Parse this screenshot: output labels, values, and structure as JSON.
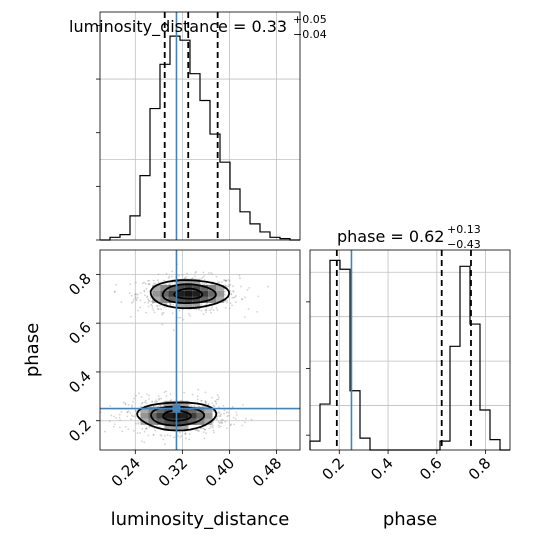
{
  "chart_data": [
    {
      "type": "histogram",
      "panel": "luminosity_distance-marginal",
      "title": {
        "base": "luminosity_distance = 0.33",
        "upper": "+0.05",
        "lower": "−0.04"
      },
      "xlim": [
        0.18,
        0.52
      ],
      "bin_edges": [
        0.18,
        0.197,
        0.214,
        0.231,
        0.248,
        0.265,
        0.282,
        0.299,
        0.316,
        0.333,
        0.35,
        0.367,
        0.384,
        0.401,
        0.418,
        0.435,
        0.452,
        0.469,
        0.486,
        0.503,
        0.52
      ],
      "counts": [
        0,
        2,
        4,
        18,
        48,
        98,
        131,
        152,
        149,
        124,
        104,
        79,
        58,
        38,
        21,
        12,
        6,
        2,
        1,
        0
      ],
      "ylim": [
        0,
        170
      ],
      "quantiles": [
        0.29,
        0.33,
        0.38
      ],
      "truth": 0.31
    },
    {
      "type": "histogram",
      "panel": "phase-marginal",
      "title": {
        "base": "phase = 0.62",
        "upper": "+0.13",
        "lower": "−0.43"
      },
      "xlim": [
        0.08,
        0.9
      ],
      "bin_edges": [
        0.08,
        0.121,
        0.162,
        0.203,
        0.244,
        0.285,
        0.326,
        0.367,
        0.408,
        0.449,
        0.49,
        0.531,
        0.572,
        0.613,
        0.654,
        0.695,
        0.736,
        0.777,
        0.818,
        0.859,
        0.9
      ],
      "counts": [
        6,
        31,
        128,
        122,
        40,
        8,
        0,
        0,
        0,
        0,
        0,
        0,
        0,
        6,
        70,
        124,
        85,
        27,
        7,
        0
      ],
      "ylim": [
        0,
        135
      ],
      "quantiles": [
        0.19,
        0.62,
        0.74
      ],
      "truth": 0.25
    },
    {
      "type": "scatter",
      "panel": "phase-vs-luminosity_distance",
      "xlim": [
        0.18,
        0.52
      ],
      "ylim": [
        0.08,
        0.9
      ],
      "x_ticks": [
        0.24,
        0.32,
        0.4,
        0.48
      ],
      "y_ticks": [
        0.2,
        0.4,
        0.6,
        0.8
      ],
      "x_tick_labels": [
        "0.24",
        "0.32",
        "0.40",
        "0.48"
      ],
      "y_tick_labels": [
        "0.2",
        "0.4",
        "0.6",
        "0.8"
      ],
      "xlabel": "luminosity_distance",
      "ylabel": "phase",
      "modes": [
        {
          "center": [
            0.33,
            0.72
          ],
          "sd": [
            0.043,
            0.037
          ]
        },
        {
          "center": [
            0.31,
            0.22
          ],
          "sd": [
            0.043,
            0.037
          ]
        }
      ],
      "truth": [
        0.31,
        0.25
      ]
    }
  ],
  "phase_x_ticks": [
    0.2,
    0.4,
    0.6,
    0.8
  ],
  "phase_x_tick_labels": [
    "0.2",
    "0.4",
    "0.6",
    "0.8"
  ],
  "phase_xlabel": "phase",
  "colors": {
    "hist": "#000000",
    "truth": "#4682b4",
    "grid": "#c0c0c0",
    "points": "#808080"
  }
}
